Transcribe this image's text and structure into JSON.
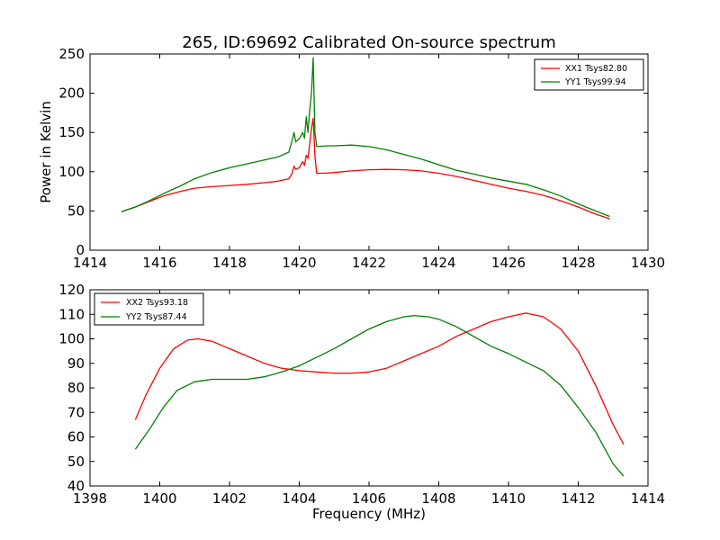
{
  "figure": {
    "title": "265, ID:69692 Calibrated On-source spectrum"
  },
  "chart_data": [
    {
      "type": "line",
      "title": "265, ID:69692 Calibrated On-source spectrum",
      "xlabel": "",
      "ylabel": "Power in Kelvin",
      "xlim": [
        1414,
        1430
      ],
      "ylim": [
        0,
        250
      ],
      "xticks": [
        1414,
        1416,
        1418,
        1420,
        1422,
        1424,
        1426,
        1428,
        1430
      ],
      "yticks": [
        0,
        50,
        100,
        150,
        200,
        250
      ],
      "grid": false,
      "legend_position": "top-right",
      "series": [
        {
          "name": "XX1 Tsys82.80",
          "color": "#ff0000",
          "points": [
            [
              1414.9,
              49
            ],
            [
              1415.3,
              55
            ],
            [
              1415.7,
              62
            ],
            [
              1416.1,
              69
            ],
            [
              1416.6,
              75
            ],
            [
              1417.0,
              79
            ],
            [
              1417.5,
              81
            ],
            [
              1418.0,
              82.5
            ],
            [
              1418.5,
              84
            ],
            [
              1419.0,
              86
            ],
            [
              1419.4,
              88
            ],
            [
              1419.7,
              91
            ],
            [
              1419.8,
              98
            ],
            [
              1419.85,
              107
            ],
            [
              1419.9,
              103
            ],
            [
              1420.0,
              105
            ],
            [
              1420.1,
              113
            ],
            [
              1420.15,
              108
            ],
            [
              1420.2,
              121
            ],
            [
              1420.25,
              117
            ],
            [
              1420.3,
              135
            ],
            [
              1420.35,
              155
            ],
            [
              1420.4,
              168
            ],
            [
              1420.45,
              120
            ],
            [
              1420.5,
              98
            ],
            [
              1420.7,
              98
            ],
            [
              1421.0,
              99
            ],
            [
              1421.5,
              101
            ],
            [
              1422.0,
              102.5
            ],
            [
              1422.5,
              103
            ],
            [
              1423.0,
              102.5
            ],
            [
              1423.5,
              101
            ],
            [
              1424.0,
              98
            ],
            [
              1424.5,
              94
            ],
            [
              1425.0,
              89
            ],
            [
              1425.5,
              84
            ],
            [
              1426.0,
              79
            ],
            [
              1426.5,
              75
            ],
            [
              1427.0,
              70
            ],
            [
              1427.5,
              63
            ],
            [
              1428.0,
              55
            ],
            [
              1428.5,
              46
            ],
            [
              1428.9,
              40
            ]
          ]
        },
        {
          "name": "YY1 Tsys99.94",
          "color": "#008000",
          "points": [
            [
              1414.9,
              49
            ],
            [
              1415.3,
              55
            ],
            [
              1415.7,
              63
            ],
            [
              1416.1,
              72
            ],
            [
              1416.6,
              82
            ],
            [
              1417.0,
              91
            ],
            [
              1417.5,
              99
            ],
            [
              1418.0,
              105
            ],
            [
              1418.5,
              110
            ],
            [
              1419.0,
              115
            ],
            [
              1419.4,
              119
            ],
            [
              1419.7,
              125
            ],
            [
              1419.8,
              140
            ],
            [
              1419.85,
              150
            ],
            [
              1419.9,
              138
            ],
            [
              1420.0,
              142
            ],
            [
              1420.1,
              150
            ],
            [
              1420.15,
              143
            ],
            [
              1420.2,
              170
            ],
            [
              1420.25,
              150
            ],
            [
              1420.3,
              178
            ],
            [
              1420.35,
              200
            ],
            [
              1420.4,
              245
            ],
            [
              1420.45,
              150
            ],
            [
              1420.5,
              132
            ],
            [
              1420.8,
              133
            ],
            [
              1421.0,
              133
            ],
            [
              1421.5,
              134
            ],
            [
              1422.0,
              132
            ],
            [
              1422.5,
              128
            ],
            [
              1423.0,
              122
            ],
            [
              1423.5,
              116
            ],
            [
              1424.0,
              109
            ],
            [
              1424.5,
              102
            ],
            [
              1425.0,
              97
            ],
            [
              1425.5,
              92
            ],
            [
              1426.0,
              88
            ],
            [
              1426.5,
              84
            ],
            [
              1427.0,
              77
            ],
            [
              1427.5,
              69
            ],
            [
              1428.0,
              59
            ],
            [
              1428.5,
              50
            ],
            [
              1428.9,
              43
            ]
          ]
        }
      ]
    },
    {
      "type": "line",
      "title": "",
      "xlabel": "Frequency (MHz)",
      "ylabel": "",
      "xlim": [
        1398,
        1414
      ],
      "ylim": [
        40,
        120
      ],
      "xticks": [
        1398,
        1400,
        1402,
        1404,
        1406,
        1408,
        1410,
        1412,
        1414
      ],
      "yticks": [
        40,
        50,
        60,
        70,
        80,
        90,
        100,
        110,
        120
      ],
      "grid": false,
      "legend_position": "top-left",
      "series": [
        {
          "name": "XX2 Tsys93.18",
          "color": "#ff0000",
          "points": [
            [
              1399.3,
              67
            ],
            [
              1399.6,
              77
            ],
            [
              1400.0,
              88
            ],
            [
              1400.4,
              96
            ],
            [
              1400.8,
              99.5
            ],
            [
              1401.1,
              100
            ],
            [
              1401.5,
              99
            ],
            [
              1402.0,
              96
            ],
            [
              1402.5,
              93
            ],
            [
              1403.0,
              90
            ],
            [
              1403.5,
              88
            ],
            [
              1404.0,
              87
            ],
            [
              1404.5,
              86.5
            ],
            [
              1405.0,
              86
            ],
            [
              1405.5,
              86
            ],
            [
              1406.0,
              86.5
            ],
            [
              1406.5,
              88
            ],
            [
              1407.0,
              91
            ],
            [
              1407.5,
              94
            ],
            [
              1408.0,
              97
            ],
            [
              1408.5,
              101
            ],
            [
              1409.0,
              104
            ],
            [
              1409.5,
              107
            ],
            [
              1410.0,
              109
            ],
            [
              1410.5,
              110.5
            ],
            [
              1411.0,
              109
            ],
            [
              1411.5,
              104
            ],
            [
              1412.0,
              95
            ],
            [
              1412.5,
              81
            ],
            [
              1413.0,
              65
            ],
            [
              1413.3,
              57
            ]
          ]
        },
        {
          "name": "YY2 Tsys87.44",
          "color": "#008000",
          "points": [
            [
              1399.3,
              55
            ],
            [
              1399.7,
              63
            ],
            [
              1400.1,
              72
            ],
            [
              1400.5,
              79
            ],
            [
              1401.0,
              82.5
            ],
            [
              1401.5,
              83.5
            ],
            [
              1402.0,
              83.5
            ],
            [
              1402.5,
              83.5
            ],
            [
              1403.0,
              84.5
            ],
            [
              1403.5,
              86.5
            ],
            [
              1404.0,
              89
            ],
            [
              1404.5,
              92.5
            ],
            [
              1405.0,
              96
            ],
            [
              1405.5,
              100
            ],
            [
              1406.0,
              104
            ],
            [
              1406.5,
              107
            ],
            [
              1407.0,
              109
            ],
            [
              1407.3,
              109.5
            ],
            [
              1407.7,
              109
            ],
            [
              1408.0,
              108
            ],
            [
              1408.5,
              105
            ],
            [
              1409.0,
              101
            ],
            [
              1409.5,
              97
            ],
            [
              1410.0,
              94
            ],
            [
              1410.5,
              90.5
            ],
            [
              1411.0,
              87
            ],
            [
              1411.5,
              81
            ],
            [
              1412.0,
              72
            ],
            [
              1412.5,
              62
            ],
            [
              1413.0,
              49
            ],
            [
              1413.3,
              44
            ]
          ]
        }
      ]
    }
  ]
}
